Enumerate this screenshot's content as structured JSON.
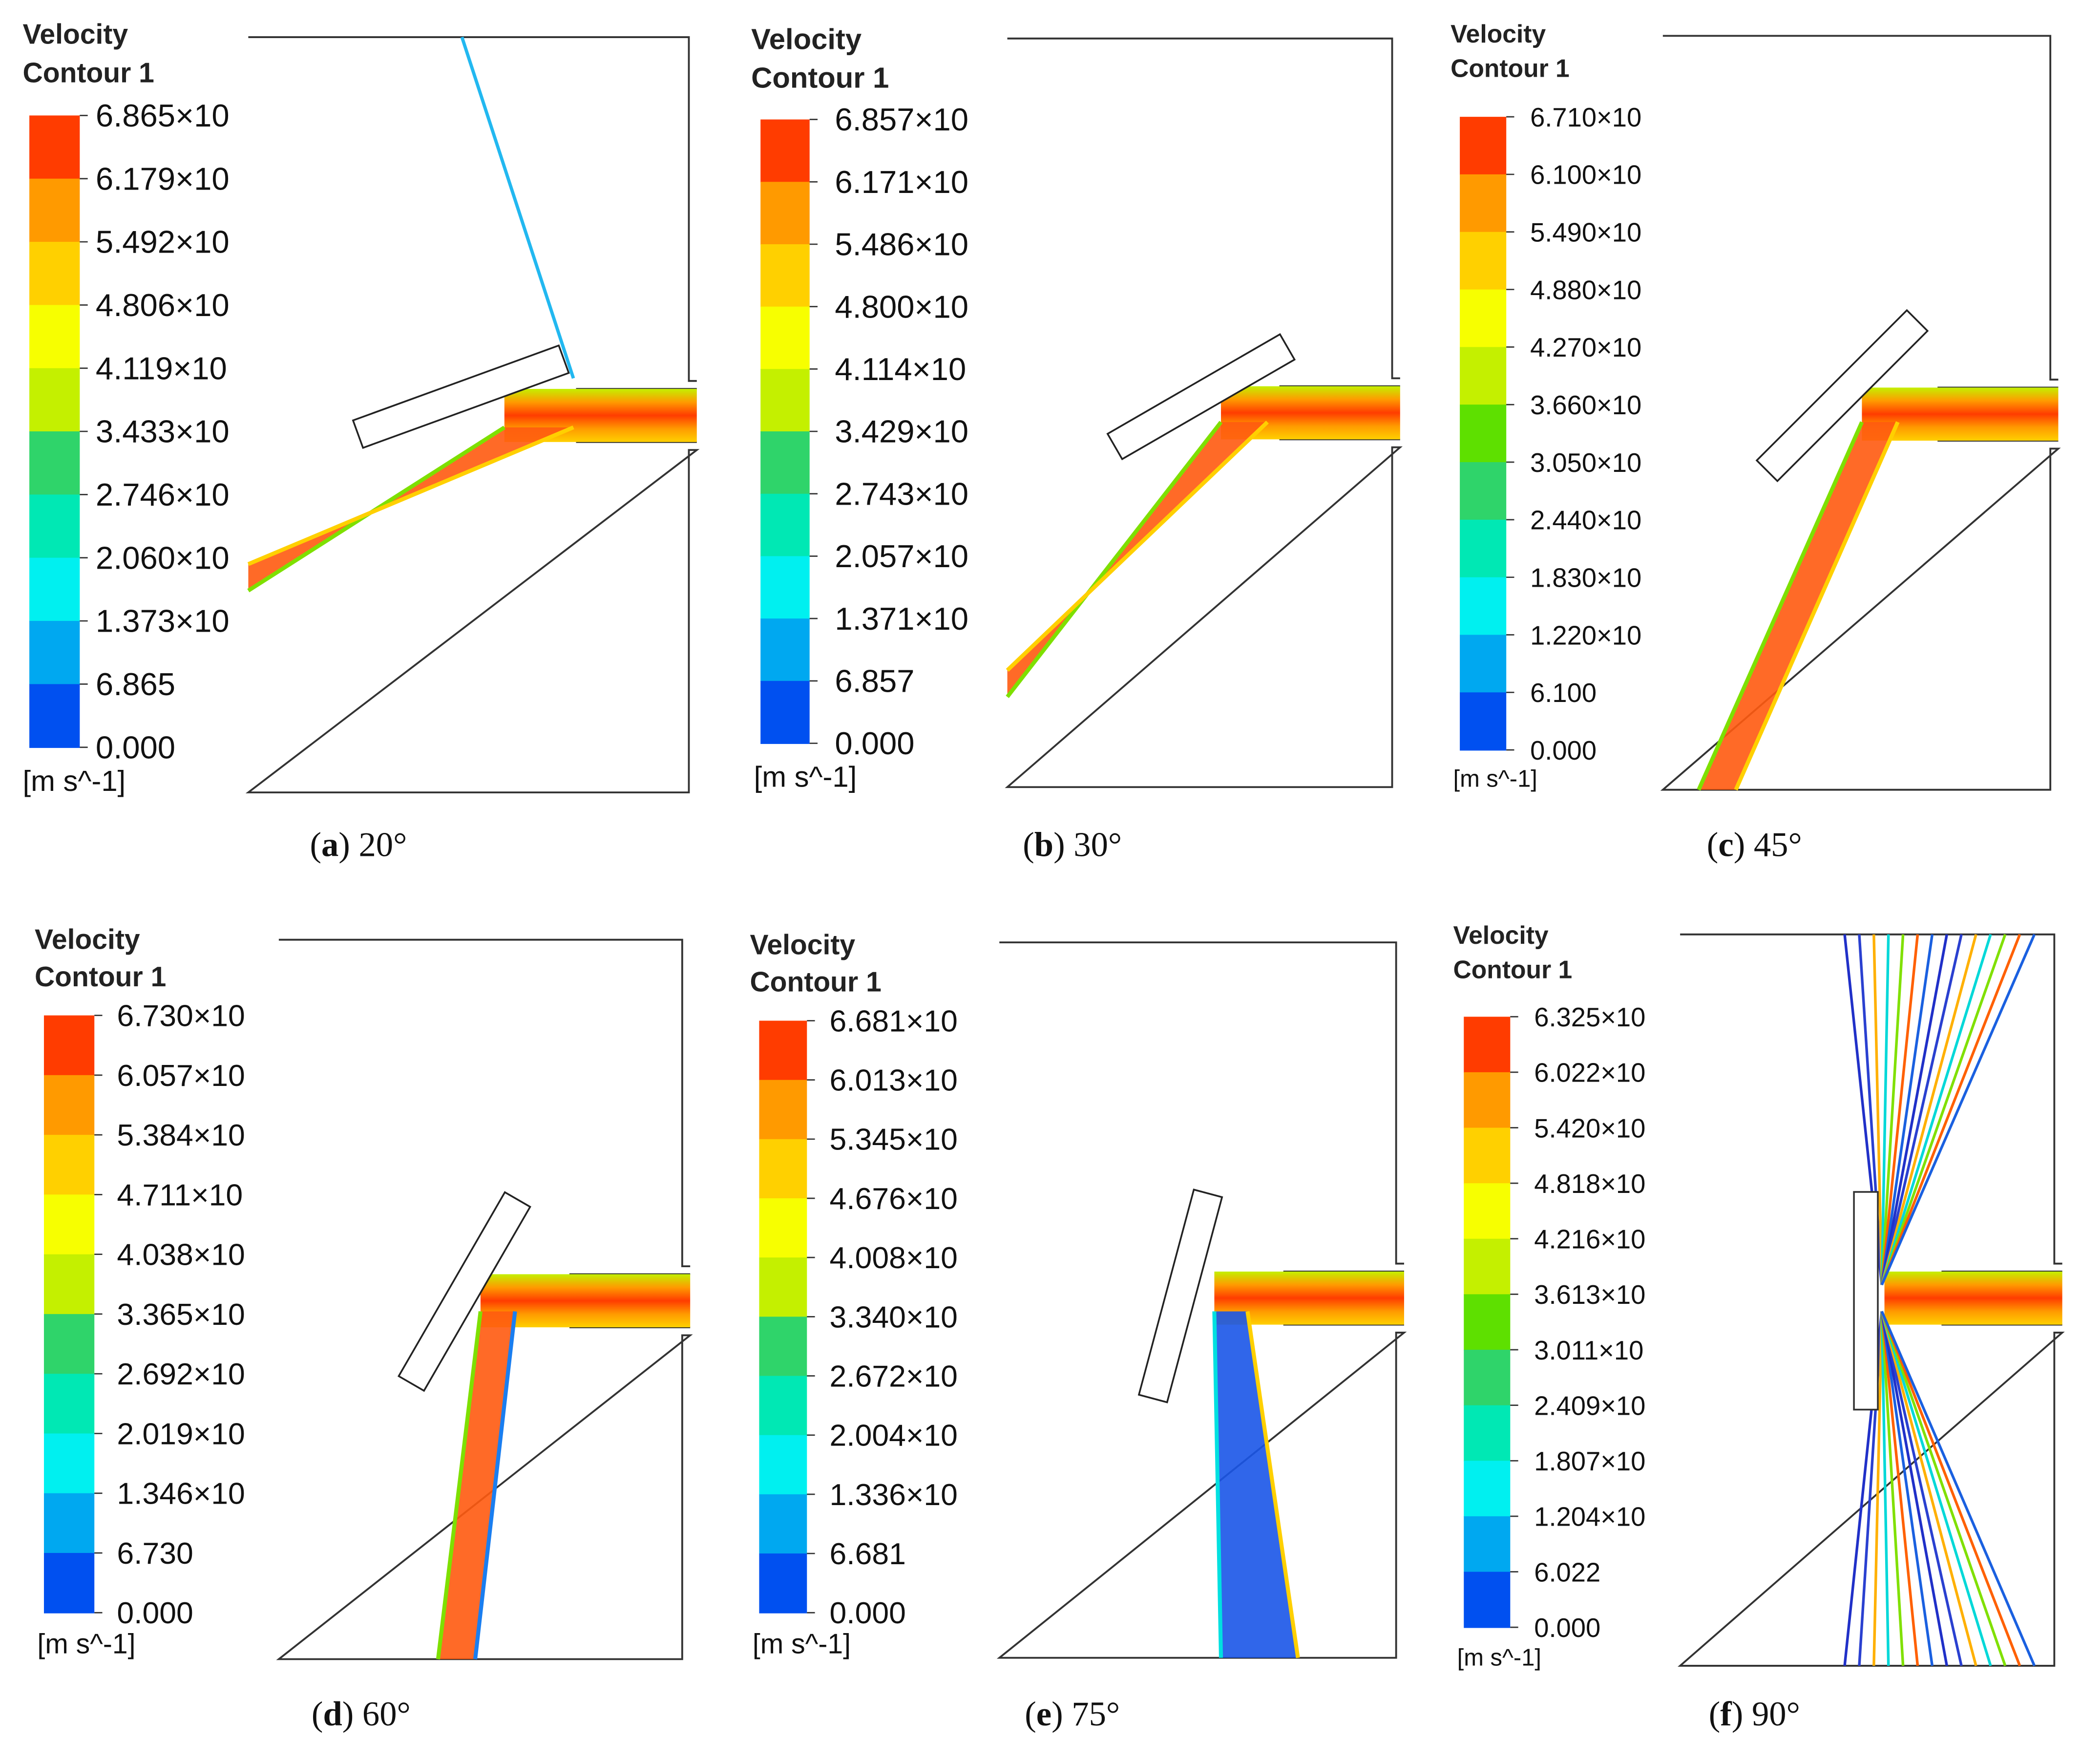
{
  "colormap": [
    "#ff3c00",
    "#ff9a00",
    "#ffd000",
    "#f7ff00",
    "#c4f000",
    "#5ee000",
    "#2fd46a",
    "#00e8b4",
    "#00f0f0",
    "#00a8f0",
    "#0050f0"
  ],
  "panels": [
    {
      "legend_title": [
        "Velocity",
        "Contour 1"
      ],
      "ticks": [
        "6.865×10",
        "6.179×10",
        "5.492×10",
        "4.806×10",
        "4.119×10",
        "3.433×10",
        "2.746×10",
        "2.060×10",
        "1.373×10",
        "6.865",
        "0.000"
      ],
      "unit": "[m s^-1]",
      "caption": [
        "(",
        "a",
        ") 20°"
      ]
    },
    {
      "legend_title": [
        "Velocity",
        "Contour 1"
      ],
      "ticks": [
        "6.857×10",
        "6.171×10",
        "5.486×10",
        "4.800×10",
        "4.114×10",
        "3.429×10",
        "2.743×10",
        "2.057×10",
        "1.371×10",
        "6.857",
        "0.000"
      ],
      "unit": "[m s^-1]",
      "caption": [
        "(",
        "b",
        ") 30°"
      ]
    },
    {
      "legend_title": [
        "Velocity",
        "Contour 1"
      ],
      "ticks": [
        "6.710×10",
        "6.100×10",
        "5.490×10",
        "4.880×10",
        "4.270×10",
        "3.660×10",
        "3.050×10",
        "2.440×10",
        "1.830×10",
        "1.220×10",
        "6.100",
        "0.000"
      ],
      "unit": "[m s^-1]",
      "caption": [
        "(",
        "c",
        ") 45°"
      ]
    },
    {
      "legend_title": [
        "Velocity",
        "Contour 1"
      ],
      "ticks": [
        "6.730×10",
        "6.057×10",
        "5.384×10",
        "4.711×10",
        "4.038×10",
        "3.365×10",
        "2.692×10",
        "2.019×10",
        "1.346×10",
        "6.730",
        "0.000"
      ],
      "unit": "[m s^-1]",
      "caption": [
        "(",
        "d",
        ") 60°"
      ]
    },
    {
      "legend_title": [
        "Velocity",
        "Contour 1"
      ],
      "ticks": [
        "6.681×10",
        "6.013×10",
        "5.345×10",
        "4.676×10",
        "4.008×10",
        "3.340×10",
        "2.672×10",
        "2.004×10",
        "1.336×10",
        "6.681",
        "0.000"
      ],
      "unit": "[m s^-1]",
      "caption": [
        "(",
        "e",
        ") 75°"
      ]
    },
    {
      "legend_title": [
        "Velocity",
        "Contour 1"
      ],
      "ticks": [
        "6.325×10",
        "6.022×10",
        "5.420×10",
        "4.818×10",
        "4.216×10",
        "3.613×10",
        "3.011×10",
        "2.409×10",
        "1.807×10",
        "1.204×10",
        "6.022",
        "0.000"
      ],
      "unit": "[m s^-1]",
      "caption": [
        "(",
        "f",
        ") 90°"
      ]
    }
  ]
}
